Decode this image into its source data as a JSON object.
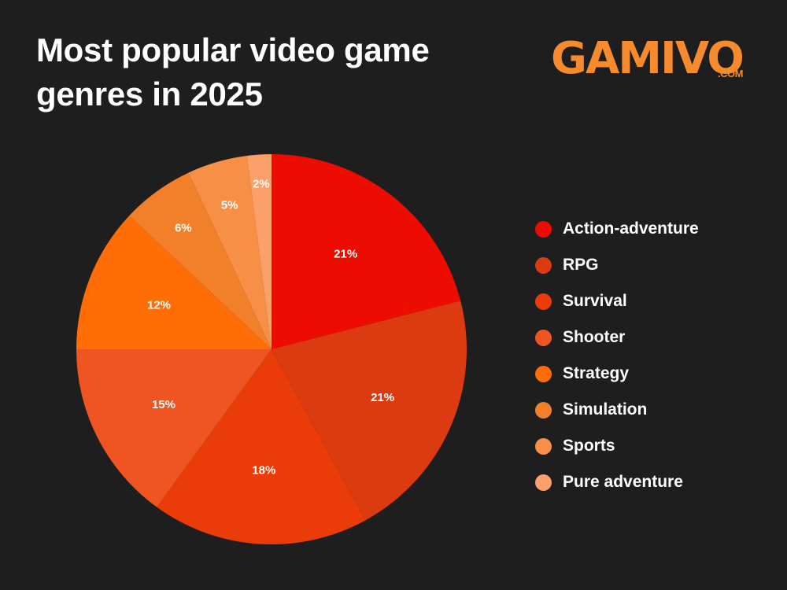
{
  "header": {
    "title": "Most popular video game genres in 2025",
    "logo_text": "GAMIVO",
    "logo_suffix": ".COM",
    "logo_color": "#f58a2e"
  },
  "background": "#1e1e1e",
  "chart_data": {
    "type": "pie",
    "title": "Most popular video game genres in 2025",
    "start_angle": "12 o'clock",
    "direction": "clockwise",
    "legend_position": "right",
    "categories": [
      "Action-adventure",
      "RPG",
      "Survival",
      "Shooter",
      "Strategy",
      "Simulation",
      "Sports",
      "Pure adventure"
    ],
    "values": [
      21,
      21,
      18,
      15,
      12,
      6,
      5,
      2
    ],
    "unit": "%",
    "labels": [
      "21%",
      "21%",
      "18%",
      "15%",
      "12%",
      "6%",
      "5%",
      "2%"
    ],
    "colors": [
      "#ec0c00",
      "#dc3a10",
      "#ea3c08",
      "#ee5522",
      "#ff6e06",
      "#f2802a",
      "#f78f46",
      "#fba06a"
    ]
  },
  "legend": {
    "items": [
      {
        "label": "Action-adventure",
        "color": "#ec0c00"
      },
      {
        "label": "RPG",
        "color": "#dc3a10"
      },
      {
        "label": "Survival",
        "color": "#ea3c08"
      },
      {
        "label": "Shooter",
        "color": "#ee5522"
      },
      {
        "label": "Strategy",
        "color": "#ff6e06"
      },
      {
        "label": "Simulation",
        "color": "#f2802a"
      },
      {
        "label": "Sports",
        "color": "#f78f46"
      },
      {
        "label": "Pure adventure",
        "color": "#fba06a"
      }
    ]
  }
}
